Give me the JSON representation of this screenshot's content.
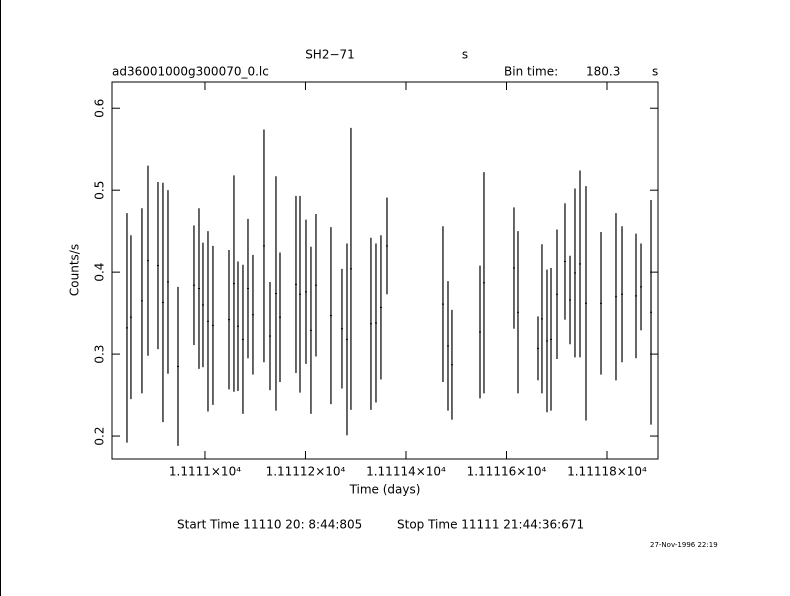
{
  "chart_data": {
    "type": "errorbar",
    "title": "SH2−71",
    "title_unit": "s",
    "file_name": "ad36001000g300070_0.lc",
    "bin_time_label": "Bin time:",
    "bin_time": 180.3,
    "bin_time_unit": "s",
    "x_label": "Time (days)",
    "y_label": "Counts/s",
    "start_time": "Start Time 11110 20: 8:44:805",
    "stop_time": "Stop Time 11111 21:44:36:671",
    "date": "27-Nov-1996 22:19",
    "xlim": [
      11110.815,
      11111.9015
    ],
    "ylim": [
      0.172,
      0.632
    ],
    "xticks": [
      {
        "value": 11111,
        "label": "1.1111×10⁴"
      },
      {
        "value": 11111.2,
        "label": "1.11112×10⁴"
      },
      {
        "value": 11111.4,
        "label": "1.11114×10⁴"
      },
      {
        "value": 11111.6,
        "label": "1.11116×10⁴"
      },
      {
        "value": 11111.8,
        "label": "1.11118×10⁴"
      }
    ],
    "yticks": [
      0.2,
      0.3,
      0.4,
      0.5,
      0.6
    ],
    "x": [
      11110.8448,
      11110.8527,
      11110.8746,
      11110.8866,
      11110.9065,
      11110.9164,
      11110.9264,
      11110.9463,
      11110.9781,
      11110.9881,
      11110.996,
      11111.006,
      11111.0159,
      11111.0478,
      11111.0577,
      11111.0657,
      11111.0756,
      11111.0856,
      11111.0955,
      11111.1174,
      11111.1294,
      11111.1413,
      11111.1493,
      11111.1811,
      11111.1891,
      11111.201,
      11111.2109,
      11111.2209,
      11111.2507,
      11111.2726,
      11111.2826,
      11111.2905,
      11111.3303,
      11111.3403,
      11111.3502,
      11111.3622,
      11111.4736,
      11111.4836,
      11111.4915,
      11111.5473,
      11111.5552,
      11111.6149,
      11111.6229,
      11111.6627,
      11111.6706,
      11111.6806,
      11111.6886,
      11111.7005,
      11111.7164,
      11111.7264,
      11111.7363,
      11111.7463,
      11111.7582,
      11111.7881,
      11111.8179,
      11111.8299,
      11111.8577,
      11111.8677,
      11111.8876
    ],
    "series": [
      {
        "color": "#000000",
        "values": [
          0.332,
          0.345,
          0.365,
          0.414,
          0.408,
          0.363,
          0.388,
          0.285,
          0.384,
          0.38,
          0.36,
          0.34,
          0.335,
          0.342,
          0.386,
          0.334,
          0.318,
          0.38,
          0.348,
          0.432,
          0.322,
          0.374,
          0.345,
          0.385,
          0.373,
          0.376,
          0.329,
          0.384,
          0.347,
          0.331,
          0.318,
          0.404,
          0.337,
          0.338,
          0.357,
          0.432,
          0.361,
          0.31,
          0.287,
          0.327,
          0.387,
          0.405,
          0.351,
          0.307,
          0.343,
          0.316,
          0.318,
          0.373,
          0.413,
          0.366,
          0.399,
          0.41,
          0.362,
          0.362,
          0.37,
          0.373,
          0.371,
          0.382,
          0.351
        ],
        "errors": [
          0.14,
          0.1,
          0.113,
          0.116,
          0.102,
          0.146,
          0.112,
          0.097,
          0.073,
          0.098,
          0.076,
          0.11,
          0.097,
          0.085,
          0.132,
          0.079,
          0.091,
          0.085,
          0.073,
          0.142,
          0.066,
          0.143,
          0.079,
          0.108,
          0.12,
          0.088,
          0.102,
          0.087,
          0.108,
          0.073,
          0.117,
          0.172,
          0.105,
          0.097,
          0.088,
          0.059,
          0.095,
          0.079,
          0.067,
          0.081,
          0.135,
          0.074,
          0.099,
          0.039,
          0.091,
          0.087,
          0.087,
          0.079,
          0.071,
          0.054,
          0.103,
          0.114,
          0.143,
          0.087,
          0.102,
          0.083,
          0.076,
          0.053,
          0.137
        ]
      }
    ]
  }
}
